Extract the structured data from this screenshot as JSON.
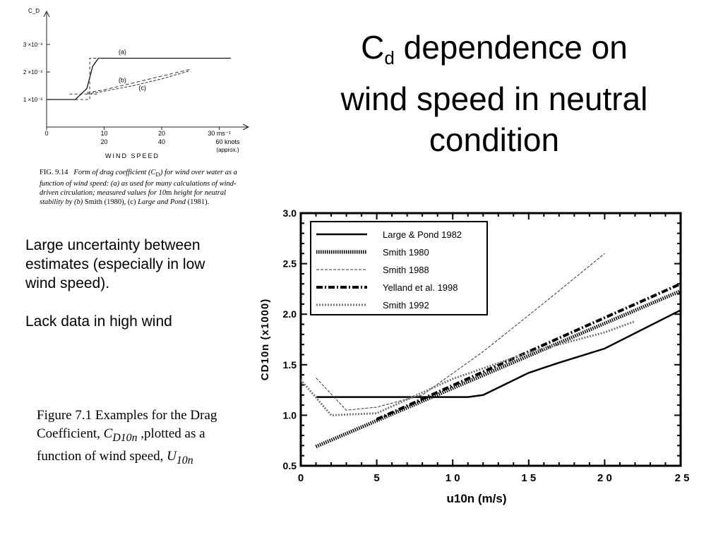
{
  "slide": {
    "title_main": "C",
    "title_sub": "d",
    "title_rest_line1": " dependence on",
    "title_line2": "wind speed in neutral",
    "title_line3": "condition",
    "bullet1": "Large uncertainty between estimates (especially in low wind speed).",
    "bullet2": "Lack data in high wind",
    "caption_part1": "Figure 7.1  Examples for the Drag Coefficient, ",
    "caption_var": "C",
    "caption_var_sub": "D10n",
    "caption_part2": " ,plotted as a function of wind speed, ",
    "caption_u": "U",
    "caption_u_sub": "10n"
  },
  "fig1": {
    "caption_label": "FIG. 9.14",
    "caption_text": "Form of drag coefficient (C",
    "caption_text_sub": "D",
    "caption_text2": ") for wind over water as a function of wind speed: (a) as used for many calculations of wind-driven circulation; measured values for 10",
    "caption_m": "m",
    "caption_text3": " height for neutral stability by (b) ",
    "caption_smith": "Smith",
    "caption_text4": " (1980), (c) ",
    "caption_lp": "Large and Pond",
    "caption_text5": " (1981).",
    "chart_data": {
      "type": "line",
      "ylabel": "C_D",
      "xlabel": "WIND SPEED",
      "y_ticks": [
        "1 ×10⁻³",
        "2 ×10⁻³",
        "3 ×10⁻³"
      ],
      "x_ticks_ms": [
        "0",
        "10",
        "20",
        "30 ms⁻¹"
      ],
      "x_ticks_knots": [
        "20",
        "40",
        "60 knots"
      ],
      "x_note": "(approx.)",
      "series": [
        {
          "name": "(a)",
          "x": [
            0,
            5,
            7,
            8,
            9,
            10,
            15,
            20,
            25,
            32
          ],
          "y": [
            1.0,
            1.0,
            1.4,
            2.2,
            2.5,
            2.5,
            2.5,
            2.5,
            2.5,
            2.5
          ]
        },
        {
          "name": "(b)",
          "x": [
            7,
            10,
            15,
            20,
            25
          ],
          "y": [
            1.25,
            1.35,
            1.6,
            1.85,
            2.1
          ]
        },
        {
          "name": "(c)",
          "x": [
            7,
            10,
            15,
            20,
            25
          ],
          "y": [
            1.2,
            1.3,
            1.5,
            1.75,
            2.05
          ]
        }
      ]
    }
  },
  "fig2": {
    "chart_data": {
      "type": "line",
      "xlabel": "u10n     (m/s)",
      "ylabel": "CD10n    (x1000)",
      "xlim": [
        0,
        25
      ],
      "ylim": [
        0.5,
        3.0
      ],
      "x_tick_labels": [
        "0",
        "5",
        "1 0",
        "1 5",
        "2 0",
        "2 5"
      ],
      "y_tick_labels": [
        "0.5",
        "1.0",
        "1.5",
        "2.0",
        "2.5",
        "3.0"
      ],
      "legend_position": "top-left",
      "series": [
        {
          "name": "Large & Pond 1982",
          "style": "solid",
          "x": [
            1,
            4,
            8,
            10,
            11,
            12,
            15,
            17,
            20,
            25
          ],
          "y": [
            1.18,
            1.18,
            1.18,
            1.18,
            1.18,
            1.2,
            1.42,
            1.52,
            1.66,
            2.04
          ]
        },
        {
          "name": "Smith 1980",
          "style": "dotted-thick",
          "x": [
            1,
            25
          ],
          "y": [
            0.69,
            2.23
          ]
        },
        {
          "name": "Smith 1988",
          "style": "dashed-thin",
          "x": [
            1,
            3,
            5,
            8,
            12,
            16,
            20
          ],
          "y": [
            1.37,
            1.05,
            1.08,
            1.2,
            1.63,
            2.11,
            2.6
          ]
        },
        {
          "name": "Yelland et al. 1998",
          "style": "dash-dot-thick",
          "x": [
            5,
            25
          ],
          "y": [
            0.96,
            2.3
          ]
        },
        {
          "name": "Smith 1992",
          "style": "grey-dotted",
          "x": [
            0,
            2,
            5,
            10,
            15,
            20,
            22
          ],
          "y": [
            1.35,
            1.0,
            1.02,
            1.36,
            1.62,
            1.82,
            1.93
          ]
        }
      ]
    }
  }
}
